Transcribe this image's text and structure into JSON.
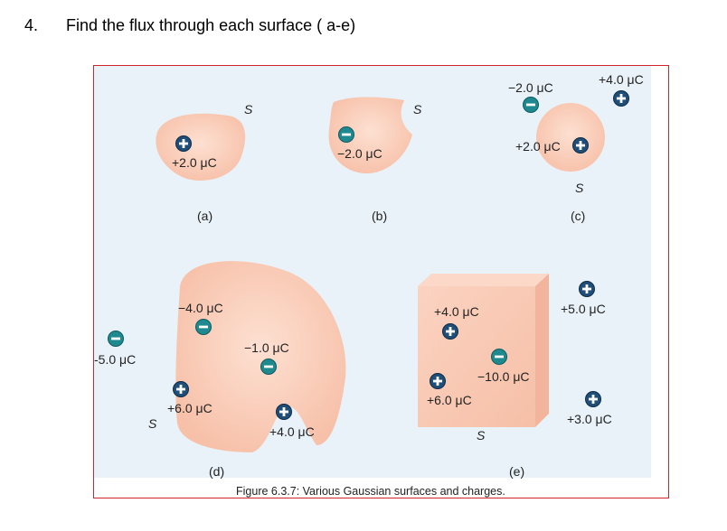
{
  "question": {
    "number": "4.",
    "text": "Find the flux through each surface ( a-e)"
  },
  "figure": {
    "caption": "Figure 6.3.7: Various Gaussian surfaces and charges.",
    "surface_symbol": "S",
    "panels": {
      "a": {
        "label": "(a)",
        "charges": [
          "+2.0 μC"
        ]
      },
      "b": {
        "label": "(b)",
        "charges": [
          "−2.0 μC"
        ]
      },
      "c": {
        "label": "(c)",
        "charges": [
          "−2.0 μC",
          "+4.0 μC",
          "+2.0 μC"
        ]
      },
      "d": {
        "label": "(d)",
        "charges": [
          "−4.0 μC",
          "−1.0 μC",
          "-5.0 μC",
          "+6.0 μC",
          "+4.0 μC"
        ]
      },
      "e": {
        "label": "(e)",
        "charges": [
          "+4.0 μC",
          "−10.0 μC",
          "+6.0 μC",
          "+5.0 μC",
          "+3.0 μC"
        ]
      }
    },
    "colors": {
      "surface_fill": "#f9cbb5",
      "positive_charge": "#1f4e79",
      "negative_charge": "#1e8a8f",
      "background": "#e9f2f8",
      "frame_border": "#d0242b"
    }
  }
}
